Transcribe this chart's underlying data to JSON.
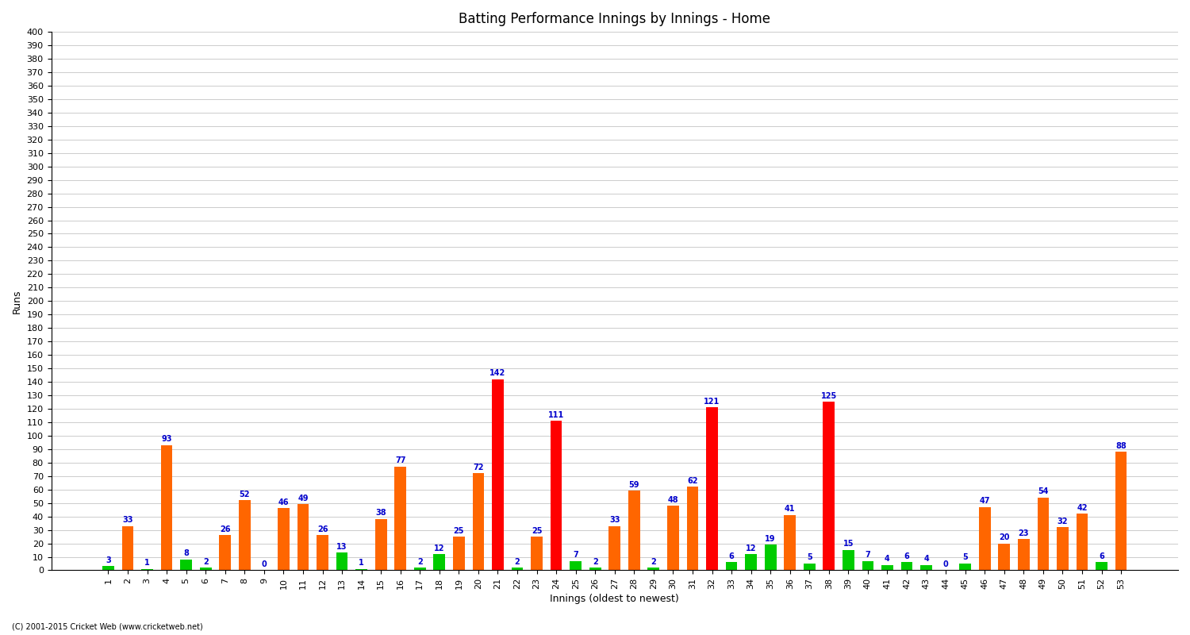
{
  "title": "Batting Performance Innings by Innings - Home",
  "xlabel": "Innings (oldest to newest)",
  "ylabel": "Runs",
  "ylim": [
    0,
    400
  ],
  "yticks": [
    0,
    10,
    20,
    30,
    40,
    50,
    60,
    70,
    80,
    90,
    100,
    110,
    120,
    130,
    140,
    150,
    160,
    170,
    180,
    190,
    200,
    210,
    220,
    230,
    240,
    250,
    260,
    270,
    280,
    290,
    300,
    310,
    320,
    330,
    340,
    350,
    360,
    370,
    380,
    390,
    400
  ],
  "innings": [
    1,
    2,
    3,
    4,
    5,
    6,
    7,
    8,
    9,
    10,
    11,
    12,
    13,
    14,
    15,
    16,
    17,
    18,
    19,
    20,
    21,
    22,
    23,
    24,
    25,
    26,
    27,
    28,
    29,
    30,
    31,
    32,
    33,
    34,
    35,
    36,
    37,
    38,
    39,
    40,
    41,
    42,
    43,
    44,
    45,
    46,
    47,
    48,
    49,
    50,
    51,
    52,
    53
  ],
  "scores": [
    3,
    33,
    1,
    93,
    8,
    2,
    26,
    52,
    0,
    46,
    49,
    26,
    13,
    1,
    38,
    77,
    2,
    12,
    25,
    72,
    142,
    2,
    25,
    111,
    7,
    2,
    33,
    59,
    2,
    48,
    62,
    121,
    6,
    12,
    19,
    41,
    5,
    125,
    15,
    7,
    4,
    6,
    4,
    0,
    5,
    47,
    20,
    23,
    54,
    32,
    42,
    6,
    88
  ],
  "colors": [
    "#00cc00",
    "#ff6600",
    "#00cc00",
    "#ff6600",
    "#00cc00",
    "#00cc00",
    "#ff6600",
    "#ff6600",
    "#00cc00",
    "#ff6600",
    "#ff6600",
    "#ff6600",
    "#00cc00",
    "#00cc00",
    "#ff6600",
    "#ff6600",
    "#00cc00",
    "#00cc00",
    "#ff6600",
    "#ff6600",
    "#ff0000",
    "#00cc00",
    "#ff6600",
    "#ff0000",
    "#00cc00",
    "#00cc00",
    "#ff6600",
    "#ff6600",
    "#00cc00",
    "#ff6600",
    "#ff6600",
    "#ff0000",
    "#00cc00",
    "#00cc00",
    "#00cc00",
    "#ff6600",
    "#00cc00",
    "#ff0000",
    "#00cc00",
    "#00cc00",
    "#00cc00",
    "#00cc00",
    "#00cc00",
    "#00cc00",
    "#00cc00",
    "#ff6600",
    "#ff6600",
    "#ff6600",
    "#ff6600",
    "#ff6600",
    "#ff6600",
    "#00cc00",
    "#ff6600"
  ],
  "footer": "(C) 2001-2015 Cricket Web (www.cricketweb.net)",
  "background_color": "#ffffff",
  "grid_color": "#cccccc",
  "label_color": "#0000cc",
  "label_fontsize": 7
}
